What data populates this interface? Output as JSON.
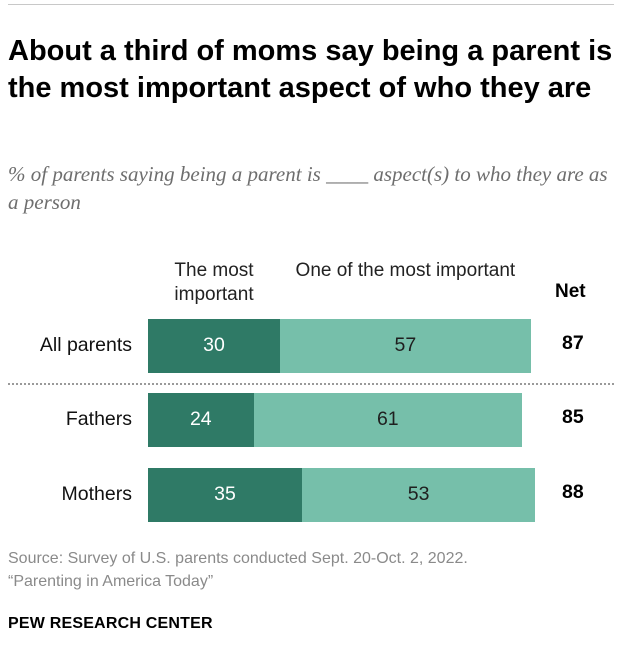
{
  "title": "About a third of moms say being a parent is the most important aspect of who they are",
  "subtitle": "% of parents saying being a parent is ____ aspect(s) to who they are as a person",
  "colors": {
    "most_important": "#2f7a66",
    "one_of_most": "#76bfaa"
  },
  "chart_data": {
    "type": "bar",
    "orientation": "horizontal",
    "stacked": true,
    "categories": [
      "All parents",
      "Fathers",
      "Mothers"
    ],
    "series": [
      {
        "name": "The most important",
        "values": [
          30,
          24,
          35
        ]
      },
      {
        "name": "One of the most important",
        "values": [
          57,
          61,
          53
        ]
      }
    ],
    "net_label": "Net",
    "net": [
      87,
      85,
      88
    ],
    "xlim": [
      0,
      100
    ]
  },
  "source": {
    "line1": "Source: Survey of U.S. parents conducted Sept. 20-Oct. 2, 2022.",
    "line2": "“Parenting in America Today”"
  },
  "brand": "PEW RESEARCH CENTER"
}
